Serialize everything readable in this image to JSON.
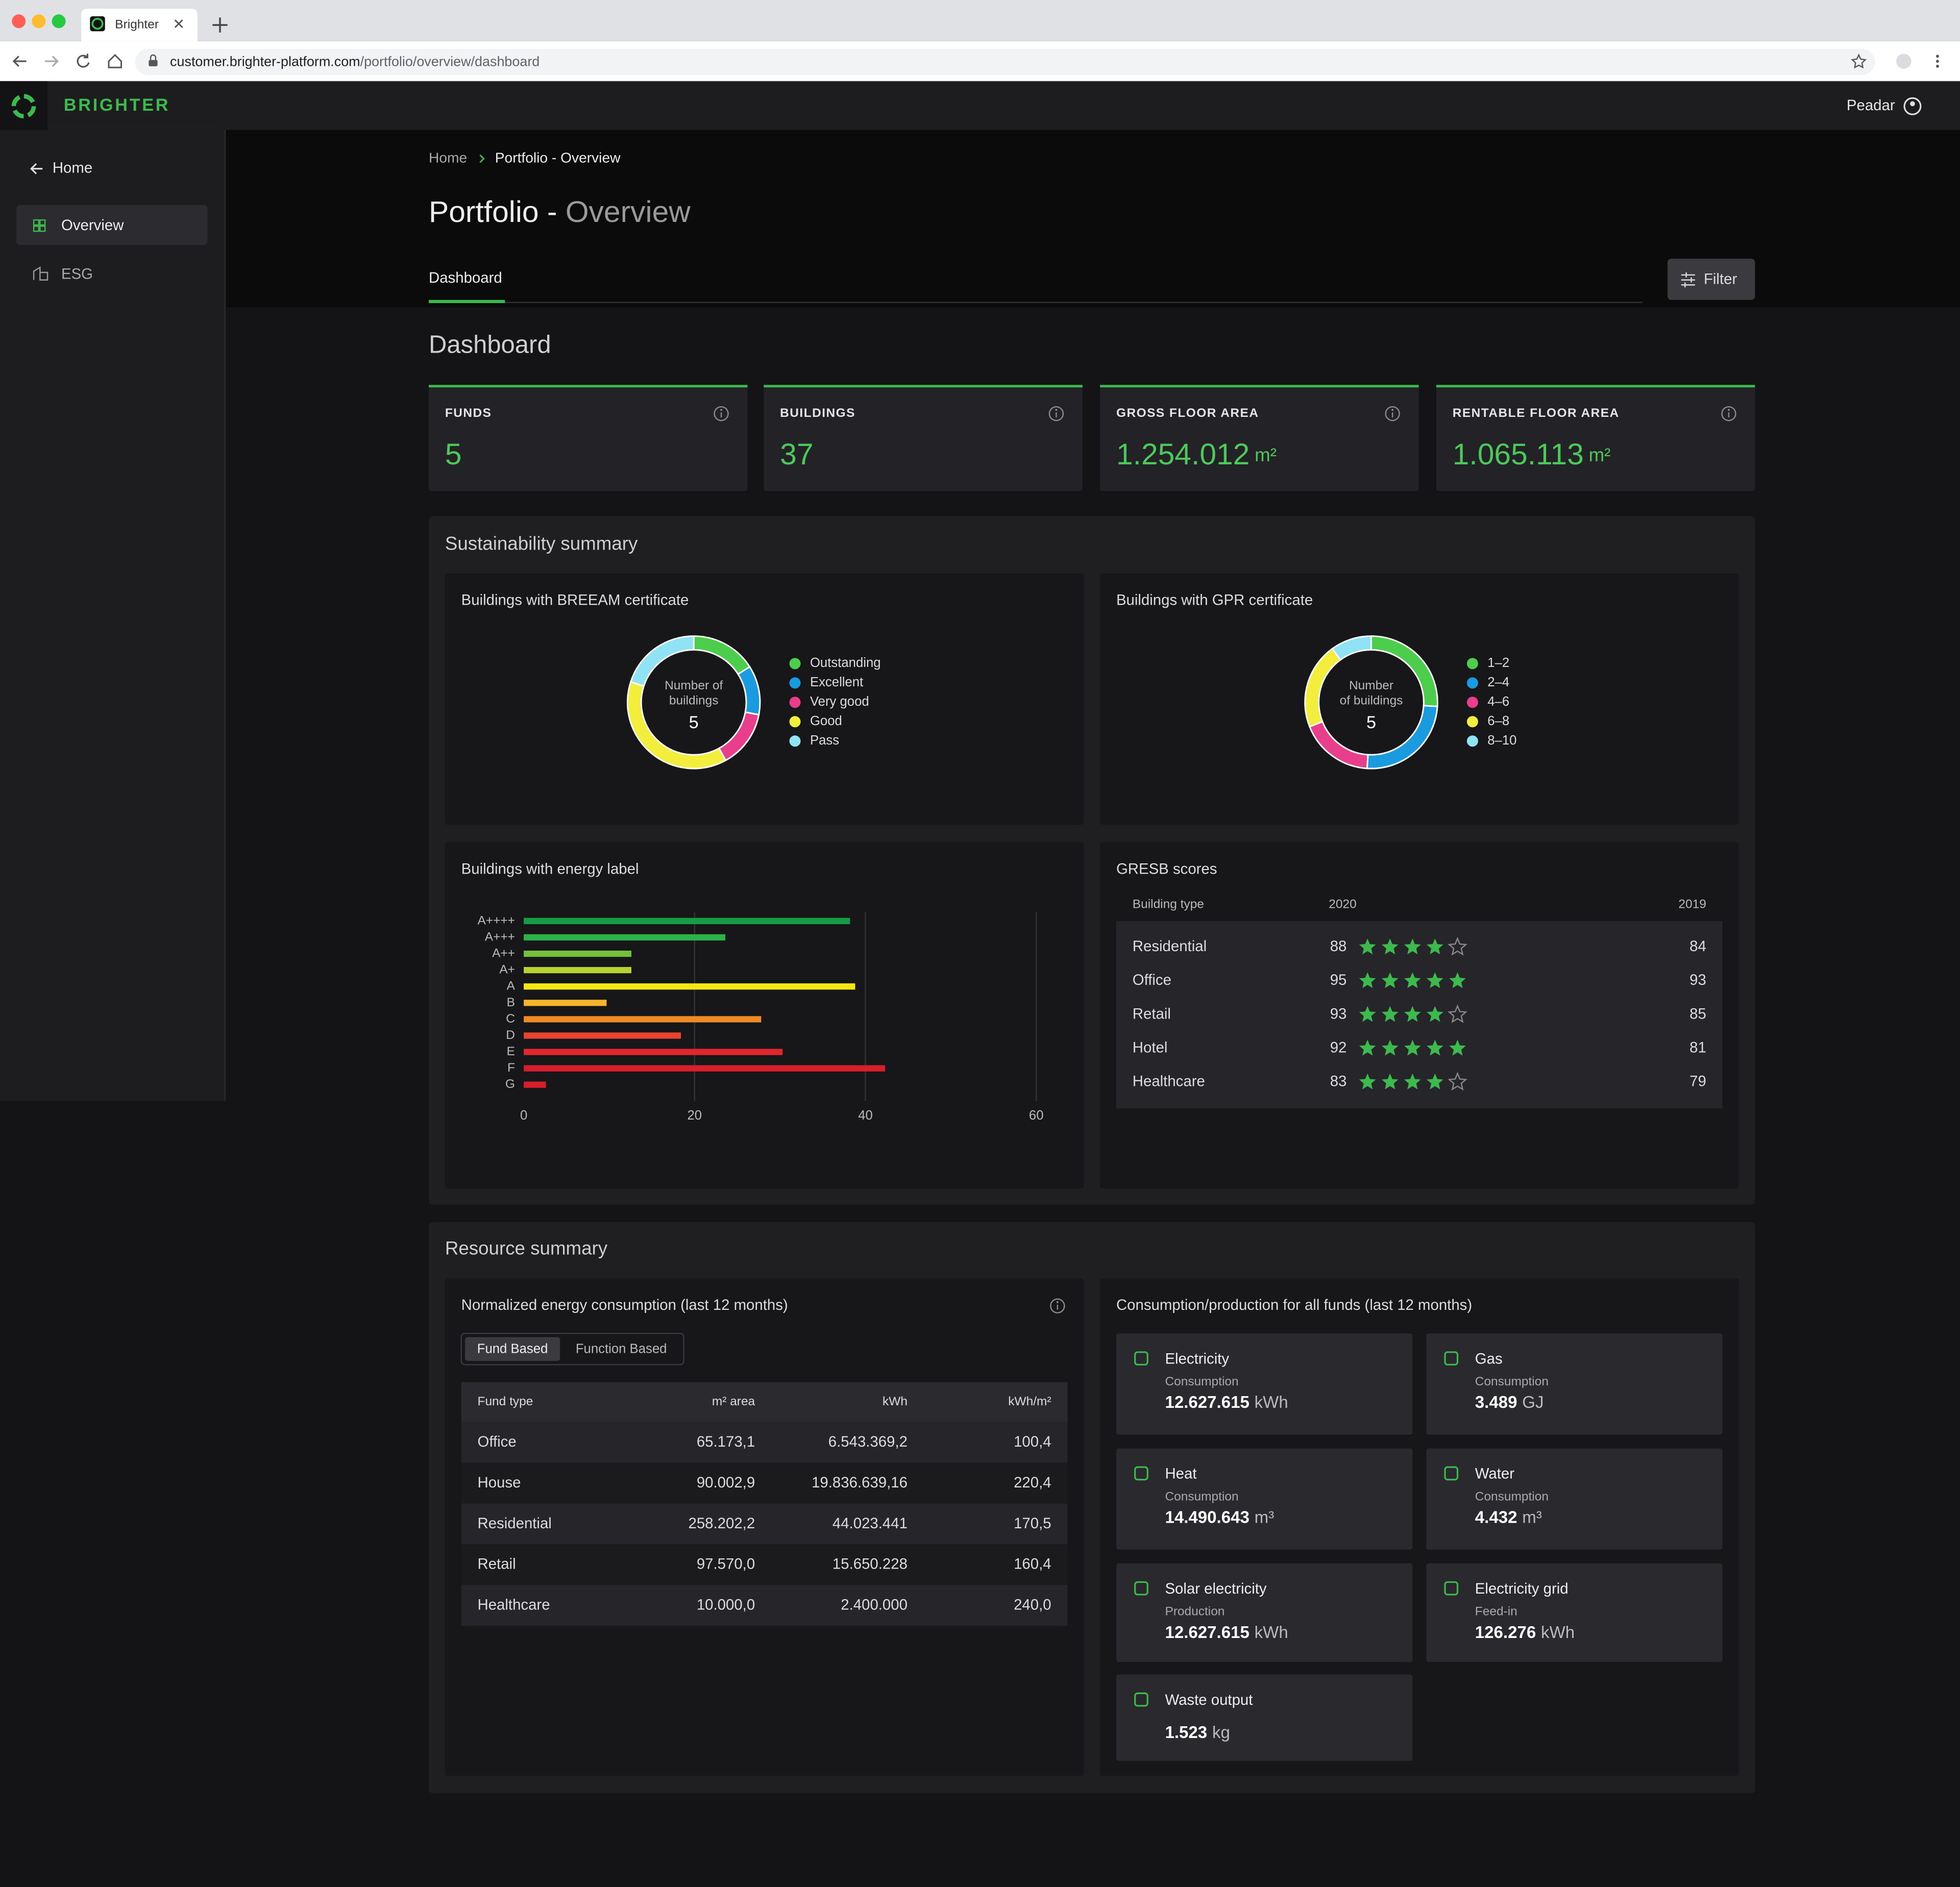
{
  "browser": {
    "tab_title": "Brighter",
    "url_host": "customer.brighter-platform.com",
    "url_path": "/portfolio/overview/dashboard"
  },
  "header": {
    "brand": "BRIGHTER",
    "user": "Peadar"
  },
  "sidebar": {
    "back": "Home",
    "items": [
      "Overview",
      "ESG"
    ]
  },
  "breadcrumb": [
    "Home",
    "Portfolio - Overview"
  ],
  "page_title": {
    "main": "Portfolio - ",
    "accent": "Overview"
  },
  "tabs": [
    "Dashboard"
  ],
  "filter": "Filter",
  "section_title": "Dashboard",
  "kpis": [
    {
      "label": "FUNDS",
      "value": "5"
    },
    {
      "label": "BUILDINGS",
      "value": "37"
    },
    {
      "label": "GROSS FLOOR AREA",
      "value": "1.254.012",
      "unit": "m²"
    },
    {
      "label": "RENTABLE FLOOR AREA",
      "value": "1.065.113",
      "unit": "m²"
    }
  ],
  "sustainability": {
    "title": "Sustainability summary",
    "breeam": {
      "type": "pie",
      "title": "Buildings with BREEAM certificate",
      "center_label": [
        "Number of",
        "buildings"
      ],
      "center_value": 5,
      "series": [
        {
          "name": "Outstanding",
          "color": "#4cce4c",
          "value": 0.8
        },
        {
          "name": "Excellent",
          "color": "#1a9be0",
          "value": 0.6
        },
        {
          "name": "Very good",
          "color": "#e83e8c",
          "value": 0.7
        },
        {
          "name": "Good",
          "color": "#f2ee3b",
          "value": 1.9
        },
        {
          "name": "Pass",
          "color": "#8fe3f5",
          "value": 1.0
        }
      ]
    },
    "gpr": {
      "type": "pie",
      "title": "Buildings with GPR certificate",
      "center_label": [
        "Number",
        "of buildings"
      ],
      "center_value": 5,
      "series": [
        {
          "name": "1–2",
          "color": "#4cce4c",
          "value": 1.3
        },
        {
          "name": "2–4",
          "color": "#1a9be0",
          "value": 1.25
        },
        {
          "name": "4–6",
          "color": "#e83e8c",
          "value": 0.9
        },
        {
          "name": "6–8",
          "color": "#f2ee3b",
          "value": 1.05
        },
        {
          "name": "8–10",
          "color": "#8fe3f5",
          "value": 0.5
        }
      ]
    },
    "energy_label": {
      "type": "bar",
      "horizontal": true,
      "title": "Buildings with energy label",
      "categories": [
        "A++++",
        "A+++",
        "A++",
        "A+",
        "A",
        "B",
        "C",
        "D",
        "E",
        "F",
        "G"
      ],
      "values": [
        38.2,
        23.6,
        12.6,
        12.6,
        38.8,
        9.7,
        27.8,
        18.4,
        30.3,
        42.3,
        2.6
      ],
      "colors": [
        "#169c45",
        "#2bb34a",
        "#74c23a",
        "#b6d330",
        "#f4e813",
        "#f6b52a",
        "#f08a24",
        "#e8432e",
        "#e3262e",
        "#d81e2b",
        "#d81e2b"
      ],
      "xlim": [
        0,
        60
      ],
      "xticks": [
        0,
        20,
        40,
        60
      ],
      "grid": true
    },
    "gresb": {
      "title": "GRESB scores",
      "columns": [
        "Building type",
        "2020",
        "2019"
      ],
      "max_stars": 5,
      "rows": [
        {
          "type": "Residential",
          "score_2020": 88,
          "stars": 4,
          "score_2019": 84
        },
        {
          "type": "Office",
          "score_2020": 95,
          "stars": 5,
          "score_2019": 93
        },
        {
          "type": "Retail",
          "score_2020": 93,
          "stars": 4,
          "score_2019": 85
        },
        {
          "type": "Hotel",
          "score_2020": 92,
          "stars": 5,
          "score_2019": 81
        },
        {
          "type": "Healthcare",
          "score_2020": 83,
          "stars": 4,
          "score_2019": 79
        }
      ]
    }
  },
  "resource": {
    "title": "Resource summary",
    "energy": {
      "title": "Normalized energy consumption (last 12 months)",
      "toggle": [
        "Fund Based",
        "Function Based"
      ],
      "columns": [
        "Fund type",
        "m² area",
        "kWh",
        "kWh/m²"
      ],
      "rows": [
        [
          "Office",
          "65.173,1",
          "6.543.369,2",
          "100,4"
        ],
        [
          "House",
          "90.002,9",
          "19.836.639,16",
          "220,4"
        ],
        [
          "Residential",
          "258.202,2",
          "44.023.441",
          "170,5"
        ],
        [
          "Retail",
          "97.570,0",
          "15.650.228",
          "160,4"
        ],
        [
          "Healthcare",
          "10.000,0",
          "2.400.000",
          "240,0"
        ]
      ]
    },
    "consumption": {
      "title": "Consumption/production for all funds (last 12 months)",
      "cards": [
        {
          "name": "Electricity",
          "sub": "Consumption",
          "value": "12.627.615",
          "unit": "kWh"
        },
        {
          "name": "Gas",
          "sub": "Consumption",
          "value": "3.489",
          "unit": "GJ"
        },
        {
          "name": "Heat",
          "sub": "Consumption",
          "value": "14.490.643",
          "unit": "m³"
        },
        {
          "name": "Water",
          "sub": "Consumption",
          "value": "4.432",
          "unit": "m³"
        },
        {
          "name": "Solar electricity",
          "sub": "Production",
          "value": "12.627.615",
          "unit": "kWh"
        },
        {
          "name": "Electricity grid",
          "sub": "Feed-in",
          "value": "126.276",
          "unit": "kWh"
        },
        {
          "name": "Waste output",
          "value": "1.523",
          "unit": "kg"
        }
      ]
    }
  }
}
